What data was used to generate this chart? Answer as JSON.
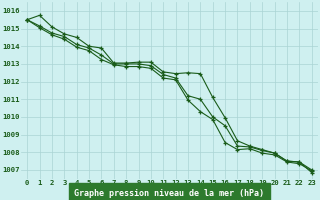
{
  "hours": [
    0,
    1,
    2,
    3,
    4,
    5,
    6,
    7,
    8,
    9,
    10,
    11,
    12,
    13,
    14,
    15,
    16,
    17,
    18,
    19,
    20,
    21,
    22,
    23
  ],
  "line1": [
    1015.5,
    1015.75,
    1015.1,
    1014.7,
    1014.5,
    1014.0,
    1013.9,
    1013.05,
    1013.05,
    1013.1,
    1013.1,
    1012.55,
    1012.45,
    1012.5,
    1012.45,
    1011.1,
    1009.95,
    1008.65,
    1008.35,
    1008.15,
    1007.95,
    1007.5,
    1007.45,
    1006.85
  ],
  "line2": [
    1015.5,
    1015.15,
    1014.75,
    1014.55,
    1014.1,
    1013.9,
    1013.5,
    1013.0,
    1013.0,
    1013.0,
    1012.9,
    1012.4,
    1012.2,
    1011.2,
    1011.0,
    1010.0,
    1009.5,
    1008.35,
    1008.3,
    1008.1,
    1007.95,
    1007.5,
    1007.45,
    1007.0
  ],
  "line3": [
    1015.5,
    1015.05,
    1014.65,
    1014.4,
    1013.95,
    1013.75,
    1013.25,
    1012.95,
    1012.85,
    1012.85,
    1012.75,
    1012.2,
    1012.1,
    1010.95,
    1010.3,
    1009.85,
    1008.55,
    1008.15,
    1008.2,
    1007.95,
    1007.85,
    1007.45,
    1007.35,
    1006.95
  ],
  "bg_color": "#cff0f0",
  "grid_color": "#aad4d4",
  "line_color": "#1a5c1a",
  "xlabel": "Graphe pression niveau de la mer (hPa)",
  "ylim": [
    1006.5,
    1016.5
  ],
  "yticks": [
    1007,
    1008,
    1009,
    1010,
    1011,
    1012,
    1013,
    1014,
    1015,
    1016
  ],
  "xticks": [
    0,
    1,
    2,
    3,
    4,
    5,
    6,
    7,
    8,
    9,
    10,
    11,
    12,
    13,
    14,
    15,
    16,
    17,
    18,
    19,
    20,
    21,
    22,
    23
  ],
  "tick_fontsize": 5.2,
  "xlabel_fontsize": 6.0,
  "xlabel_bg": "#2d7a2d"
}
